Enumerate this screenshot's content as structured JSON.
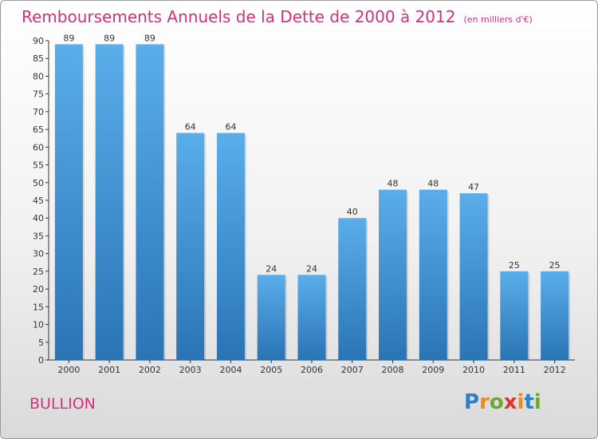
{
  "header": {
    "title": "Remboursements Annuels de la Dette de 2000 à 2012",
    "unit": "(en milliers d'€)"
  },
  "commune": "BULLION",
  "logo": {
    "text": "Proxiti",
    "letter_colors": [
      "#2e7fc4",
      "#f08a1c",
      "#6aab2d",
      "#e03232",
      "#f08a1c",
      "#2e7fc4",
      "#6aab2d"
    ]
  },
  "colors": {
    "bar_top": "#5aaeea",
    "bar_bottom": "#2a74b5",
    "axis": "#333333"
  },
  "chart_data": {
    "type": "bar",
    "title": "Remboursements Annuels de la Dette de 2000 à 2012",
    "xlabel": "",
    "ylabel": "",
    "categories": [
      "2000",
      "2001",
      "2002",
      "2003",
      "2004",
      "2005",
      "2006",
      "2007",
      "2008",
      "2009",
      "2010",
      "2011",
      "2012"
    ],
    "values": [
      89,
      89,
      89,
      64,
      64,
      24,
      24,
      40,
      48,
      48,
      47,
      25,
      25
    ],
    "ylim": [
      0,
      90
    ],
    "yticks": [
      0,
      5,
      10,
      15,
      20,
      25,
      30,
      35,
      40,
      45,
      50,
      55,
      60,
      65,
      70,
      75,
      80,
      85,
      90
    ],
    "grid": false,
    "legend": "none"
  }
}
